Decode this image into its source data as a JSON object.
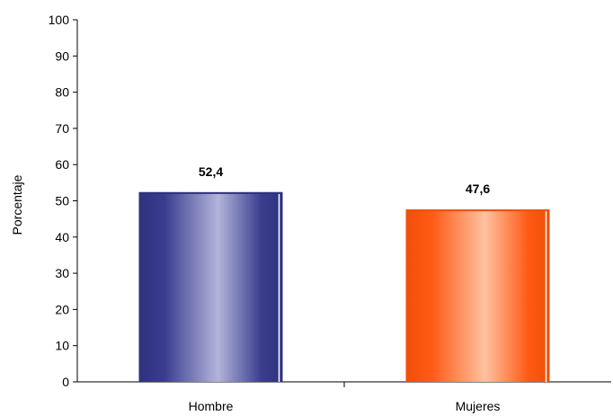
{
  "chart_data": {
    "type": "bar",
    "categories": [
      "Hombre",
      "Mujeres"
    ],
    "values": [
      52.4,
      47.6
    ],
    "data_labels": [
      "52,4",
      "47,6"
    ],
    "title": "",
    "xlabel": "",
    "ylabel": "Porcentaje",
    "ylim": [
      0,
      100
    ],
    "yticks": [
      0,
      10,
      20,
      30,
      40,
      50,
      60,
      70,
      80,
      90,
      100
    ],
    "grid": false,
    "legend": "none",
    "colors": {
      "bars": [
        {
          "edge": "#3a3d8f",
          "mid": "#b3b4da",
          "dark": "#2f327d"
        },
        {
          "edge": "#ff5a14",
          "mid": "#ffc1a0",
          "dark": "#f0500a"
        }
      ],
      "axis": "#000000"
    }
  }
}
